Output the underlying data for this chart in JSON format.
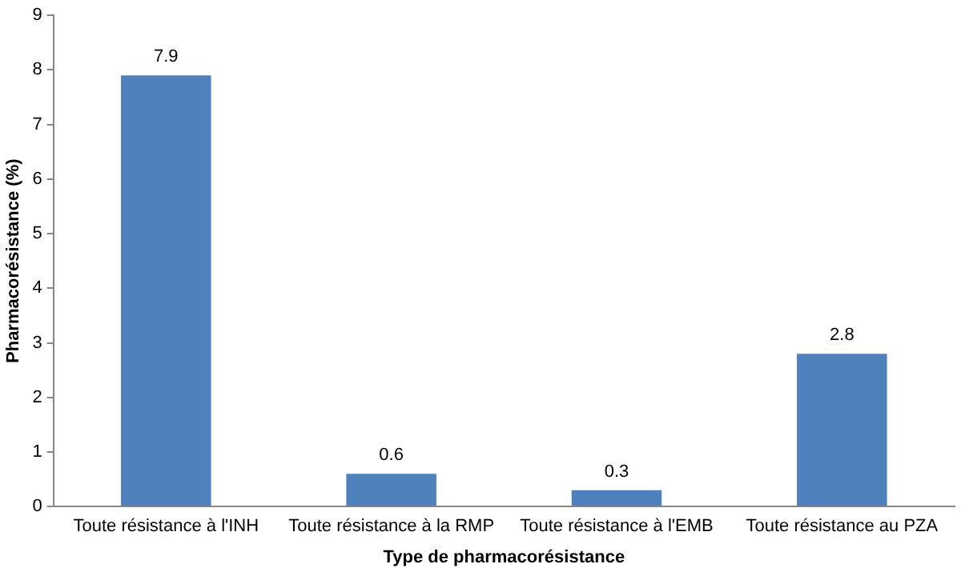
{
  "chart_data": {
    "type": "bar",
    "xlabel": "Type de pharmacorésistance",
    "ylabel": "Pharmacorésistance (%)",
    "categories": [
      "Toute résistance à l'INH",
      "Toute résistance à la RMP",
      "Toute résistance à l'EMB",
      "Toute résistance au PZA"
    ],
    "values": [
      7.9,
      0.6,
      0.3,
      2.8
    ],
    "color": "#4f81bd",
    "ylim": [
      0,
      9
    ],
    "yticks": [
      0,
      1,
      2,
      3,
      4,
      5,
      6,
      7,
      8,
      9
    ],
    "grid": false,
    "legend": false,
    "data_labels": true
  }
}
